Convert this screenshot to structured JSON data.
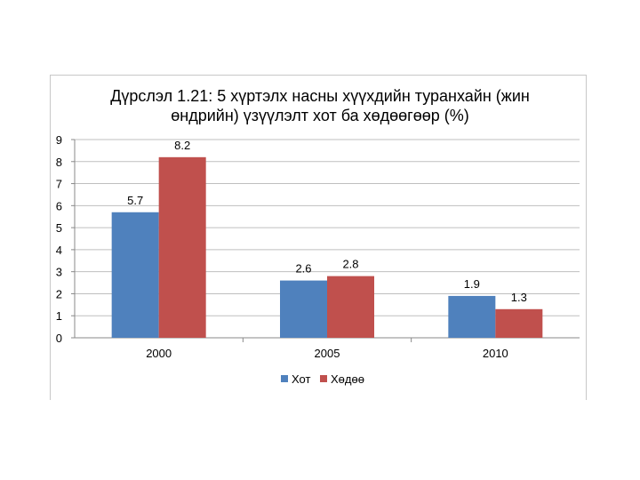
{
  "chart_data": {
    "type": "bar",
    "title": "Дүрслэл 1.21: 5 хүртэлх насны хүүхдийн туранхайн (жин өндрийн) үзүүлэлт хот ба хөдөөгөөр (%)",
    "title_lines": [
      "Дүрслэл 1.21: 5 хүртэлх насны хүүхдийн туранхайн (жин",
      "өндрийн) үзүүлэлт хот ба хөдөөгөөр (%)"
    ],
    "categories": [
      "2000",
      "2005",
      "2010"
    ],
    "series": [
      {
        "name": "Хот",
        "values": [
          5.7,
          2.6,
          1.9
        ],
        "labels": [
          "5.7",
          "2.6",
          "1.9"
        ],
        "color": "#4f81bd"
      },
      {
        "name": "Хөдөө",
        "values": [
          8.2,
          2.8,
          1.3
        ],
        "labels": [
          "8.2",
          "2.8",
          "1.3"
        ],
        "color": "#c0504d"
      }
    ],
    "ylim": [
      0,
      9
    ],
    "yticks": [
      "0",
      "1",
      "2",
      "3",
      "4",
      "5",
      "6",
      "7",
      "8",
      "9"
    ],
    "grid": true,
    "legend": "bottom"
  }
}
